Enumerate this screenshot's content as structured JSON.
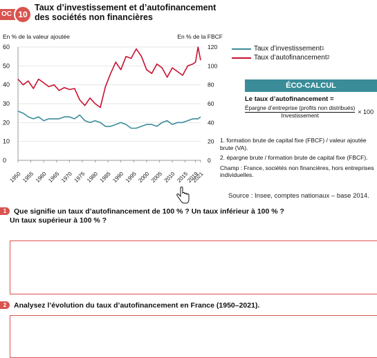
{
  "doc": {
    "tag": "OC",
    "number": "10",
    "title_line1": "Taux d’investissement et d’autofinancement",
    "title_line2": "des sociétés non financières"
  },
  "chart_data": {
    "type": "line",
    "left_axis_label": "En % de la valeur ajoutée",
    "right_axis_label": "En % de la FBCF",
    "left_ticks": [
      "0",
      "10",
      "20",
      "30",
      "40",
      "50",
      "60"
    ],
    "right_ticks": [
      "0",
      "20",
      "40",
      "60",
      "80",
      "100",
      "120"
    ],
    "ylim_left": [
      0,
      60
    ],
    "ylim_right": [
      0,
      120
    ],
    "x_ticks": [
      "1950",
      "1955",
      "1960",
      "1965",
      "1970",
      "1975",
      "1980",
      "1985",
      "1990",
      "1995",
      "2000",
      "2005",
      "2010",
      "2015",
      "2019",
      "2021"
    ],
    "series": [
      {
        "name": "Taux d’investissement",
        "color": "#3a8c99",
        "axis": "left",
        "x": [
          1950,
          1952,
          1954,
          1956,
          1958,
          1960,
          1962,
          1964,
          1966,
          1968,
          1970,
          1972,
          1974,
          1976,
          1978,
          1980,
          1982,
          1984,
          1986,
          1988,
          1990,
          1992,
          1994,
          1996,
          1998,
          2000,
          2002,
          2004,
          2006,
          2008,
          2010,
          2012,
          2014,
          2016,
          2018,
          2019,
          2020,
          2021
        ],
        "values": [
          26,
          25,
          23,
          22,
          23,
          21,
          22,
          22,
          22,
          23,
          23,
          22,
          24,
          21,
          20,
          21,
          20,
          18,
          18,
          19,
          20,
          19,
          17,
          17,
          18,
          19,
          19,
          18,
          20,
          21,
          19,
          20,
          20,
          21,
          22,
          22,
          22,
          23
        ]
      },
      {
        "name": "Taux d’autofinancement",
        "color": "#c8102e",
        "axis": "right",
        "x": [
          1950,
          1952,
          1954,
          1956,
          1958,
          1960,
          1962,
          1964,
          1966,
          1968,
          1970,
          1972,
          1974,
          1976,
          1978,
          1980,
          1982,
          1984,
          1986,
          1988,
          1990,
          1992,
          1994,
          1996,
          1998,
          2000,
          2002,
          2004,
          2006,
          2008,
          2010,
          2012,
          2014,
          2016,
          2018,
          2019,
          2020,
          2021
        ],
        "values": [
          86,
          80,
          84,
          76,
          86,
          82,
          78,
          80,
          74,
          77,
          75,
          76,
          64,
          58,
          66,
          60,
          56,
          78,
          92,
          104,
          96,
          110,
          108,
          118,
          110,
          96,
          92,
          102,
          98,
          88,
          98,
          94,
          90,
          100,
          102,
          104,
          120,
          106
        ]
      }
    ]
  },
  "legend": {
    "item1": "Taux d’investissement",
    "item1_sup": "1",
    "item2": "Taux d’autofinancement",
    "item2_sup": "2"
  },
  "eco": {
    "header": "ÉCO-CALCUL",
    "definition": "Le taux d’autofinancement =",
    "numerator": "Épargne d’entreprise (profits non distribués)",
    "denominator": "Investissement",
    "multiplier": "× 100"
  },
  "notes": {
    "n1": "1. formation brute de capital fixe (FBCF) / valeur ajoutée brute (VA).",
    "n2": "2. épargne brute / formation brute de capital fixe (FBCF).",
    "champ": "Champ : France, sociétés non financières, hors entreprises individuelles."
  },
  "source": "Source : Insee, comptes nationaux – base 2014.",
  "questions": {
    "q1_num": "1",
    "q1_line1": "Que signifie un taux d’autofinancement de 100 % ? Un taux inférieur à 100 % ?",
    "q1_line2": "Un taux supérieur à 100 % ?",
    "q2_num": "2",
    "q2_text": "Analysez l’évolution du taux d’autofinancement en France (1950–2021)."
  }
}
